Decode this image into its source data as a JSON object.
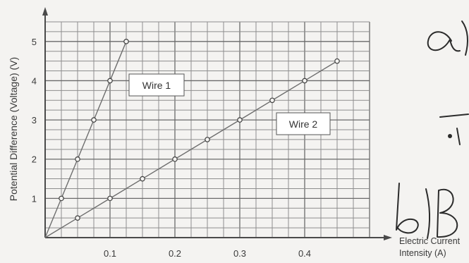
{
  "chart_data": {
    "type": "line",
    "ylabel": "Potential Difference (Voltage) (V)",
    "xlabel_lines": [
      "Electric Current",
      "Intensity (A)"
    ],
    "xlim": [
      0,
      0.5
    ],
    "ylim": [
      0,
      5.5
    ],
    "x_ticks": [
      0.1,
      0.2,
      0.3,
      0.4
    ],
    "x_tick_labels": [
      "0.1",
      "0.2",
      "0.3",
      "0.4"
    ],
    "y_ticks": [
      1,
      2,
      3,
      4,
      5
    ],
    "y_tick_labels": [
      "1",
      "2",
      "3",
      "4",
      "5"
    ],
    "grid": true,
    "series": [
      {
        "name": "Wire 1",
        "x": [
          0,
          0.025,
          0.05,
          0.075,
          0.1,
          0.125
        ],
        "y": [
          0,
          1,
          2,
          3,
          4,
          5
        ]
      },
      {
        "name": "Wire 2",
        "x": [
          0,
          0.05,
          0.1,
          0.15,
          0.2,
          0.25,
          0.3,
          0.35,
          0.4,
          0.45
        ],
        "y": [
          0,
          0.5,
          1,
          1.5,
          2,
          2.5,
          3,
          3.5,
          4,
          4.5
        ]
      }
    ]
  },
  "annotations": {
    "handwritten_a": "a)",
    "handwritten_b": "b) B"
  }
}
